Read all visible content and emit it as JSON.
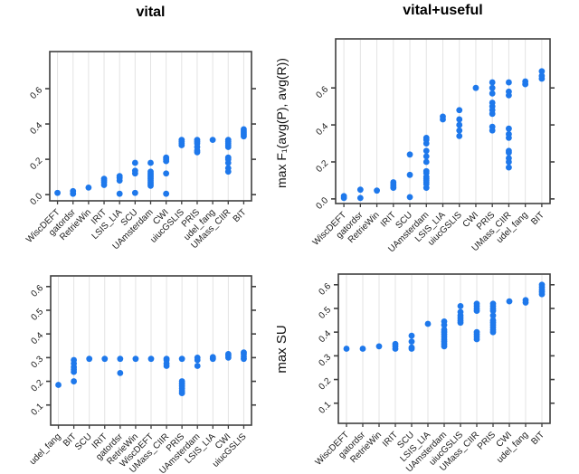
{
  "figure": {
    "column_titles": [
      "vital",
      "vital+useful"
    ],
    "row_y_axis_labels": [
      "max F₁(avg(P), avg(R))",
      "max SU"
    ],
    "dot_color": "#1E78EB",
    "grid_color": "#E3E3E3",
    "frame_color": "#3F3F3F",
    "text_color": "#1A1A1A"
  },
  "chart_data": [
    {
      "type": "scatter",
      "panel": "top-left",
      "title": "vital",
      "ylabel": "",
      "yticks": [
        0.0,
        0.2,
        0.4,
        0.6
      ],
      "ylim": [
        -0.035,
        0.81
      ],
      "grid": "vertical-per-category",
      "legend": "none",
      "categories": [
        "WiscDEFT",
        "gatordsr",
        "RetrieWin",
        "IRIT",
        "LSIS_LIA",
        "SCU",
        "UAmsterdam",
        "CWI",
        "uiucGSLIS",
        "PRIS",
        "udel_fang",
        "UMass_CIIR",
        "BIT"
      ],
      "values": [
        [
          0.01
        ],
        [
          0.005,
          0.02
        ],
        [
          0.04
        ],
        [
          0.055,
          0.07,
          0.08,
          0.09
        ],
        [
          0.005,
          0.08,
          0.095,
          0.105
        ],
        [
          0.01,
          0.12,
          0.135,
          0.18
        ],
        [
          0.05,
          0.06,
          0.07,
          0.08,
          0.09,
          0.1,
          0.11,
          0.12,
          0.13,
          0.18
        ],
        [
          0.005,
          0.12,
          0.19,
          0.2,
          0.21
        ],
        [
          0.28,
          0.29,
          0.3,
          0.31
        ],
        [
          0.24,
          0.25,
          0.27,
          0.29,
          0.3,
          0.31
        ],
        [
          0.31
        ],
        [
          0.13,
          0.15,
          0.18,
          0.2,
          0.21,
          0.27,
          0.28,
          0.29,
          0.3,
          0.31
        ],
        [
          0.33,
          0.34,
          0.35,
          0.36,
          0.37
        ]
      ]
    },
    {
      "type": "scatter",
      "panel": "top-right",
      "title": "vital+useful",
      "ylabel": "max F₁(avg(P), avg(R))",
      "yticks": [
        0.0,
        0.2,
        0.4,
        0.6
      ],
      "ylim": [
        -0.025,
        0.865
      ],
      "grid": "vertical-per-category",
      "legend": "none",
      "categories": [
        "WiscDEFT",
        "gatordsr",
        "RetrieWin",
        "IRIT",
        "SCU",
        "UAmsterdam",
        "LSIS_LIA",
        "uiucGSLIS",
        "CWI",
        "PRIS",
        "UMass_CIIR",
        "udel_fang",
        "BIT"
      ],
      "values": [
        [
          0.005,
          0.015
        ],
        [
          0.005,
          0.05
        ],
        [
          0.045
        ],
        [
          0.06,
          0.07,
          0.08,
          0.09
        ],
        [
          0.01,
          0.13,
          0.24
        ],
        [
          0.06,
          0.08,
          0.09,
          0.1,
          0.11,
          0.12,
          0.14,
          0.15,
          0.2,
          0.23,
          0.26,
          0.3,
          0.32,
          0.33
        ],
        [
          0.43,
          0.445
        ],
        [
          0.34,
          0.37,
          0.4,
          0.43,
          0.48
        ],
        [
          0.6
        ],
        [
          0.37,
          0.39,
          0.46,
          0.48,
          0.5,
          0.52,
          0.57,
          0.6,
          0.63
        ],
        [
          0.17,
          0.2,
          0.22,
          0.25,
          0.26,
          0.33,
          0.35,
          0.38,
          0.56,
          0.58,
          0.63
        ],
        [
          0.62,
          0.635
        ],
        [
          0.65,
          0.665,
          0.69
        ]
      ]
    },
    {
      "type": "scatter",
      "panel": "bottom-left",
      "title": "",
      "ylabel": "",
      "yticks": [
        0.1,
        0.2,
        0.3,
        0.4,
        0.5,
        0.6
      ],
      "ylim": [
        0.015,
        0.645
      ],
      "grid": "vertical-per-category",
      "legend": "none",
      "categories": [
        "udel_fang",
        "BIT",
        "SCU",
        "IRIT",
        "gatordsr",
        "RetrieWin",
        "WiscDEFT",
        "UMass_CIIR",
        "PRIS",
        "UAmsterdam",
        "LSIS_LIA",
        "CWI",
        "uiucGSLIS"
      ],
      "values": [
        [
          0.185
        ],
        [
          0.2,
          0.24,
          0.25,
          0.26,
          0.275,
          0.29
        ],
        [
          0.295
        ],
        [
          0.295
        ],
        [
          0.235,
          0.295
        ],
        [
          0.295
        ],
        [
          0.295
        ],
        [
          0.265,
          0.275,
          0.29,
          0.295
        ],
        [
          0.15,
          0.16,
          0.17,
          0.18,
          0.19,
          0.2,
          0.295
        ],
        [
          0.265,
          0.29,
          0.3
        ],
        [
          0.295,
          0.302
        ],
        [
          0.3,
          0.308,
          0.315
        ],
        [
          0.295,
          0.305,
          0.315,
          0.322
        ]
      ]
    },
    {
      "type": "scatter",
      "panel": "bottom-right",
      "title": "",
      "ylabel": "max SU",
      "yticks": [
        0.1,
        0.2,
        0.3,
        0.4,
        0.5,
        0.6
      ],
      "ylim": [
        0.015,
        0.645
      ],
      "grid": "vertical-per-category",
      "legend": "none",
      "categories": [
        "WiscDEFT",
        "gatordsr",
        "RetrieWin",
        "IRIT",
        "SCU",
        "LSIS_LIA",
        "UAmsterdam",
        "uiucGSLIS",
        "UMass_CIIR",
        "PRIS",
        "CWI",
        "udel_fang",
        "BIT"
      ],
      "values": [
        [
          0.33
        ],
        [
          0.33
        ],
        [
          0.34
        ],
        [
          0.33,
          0.34,
          0.35
        ],
        [
          0.33,
          0.335,
          0.36,
          0.385
        ],
        [
          0.435
        ],
        [
          0.34,
          0.35,
          0.36,
          0.37,
          0.38,
          0.39,
          0.4,
          0.41,
          0.43,
          0.445
        ],
        [
          0.44,
          0.45,
          0.46,
          0.47,
          0.485,
          0.51
        ],
        [
          0.37,
          0.38,
          0.39,
          0.4,
          0.49,
          0.5,
          0.51,
          0.52
        ],
        [
          0.4,
          0.41,
          0.42,
          0.43,
          0.44,
          0.45,
          0.47,
          0.49,
          0.5,
          0.51,
          0.52
        ],
        [
          0.53
        ],
        [
          0.525,
          0.535
        ],
        [
          0.56,
          0.57,
          0.58,
          0.59,
          0.6
        ]
      ]
    }
  ]
}
